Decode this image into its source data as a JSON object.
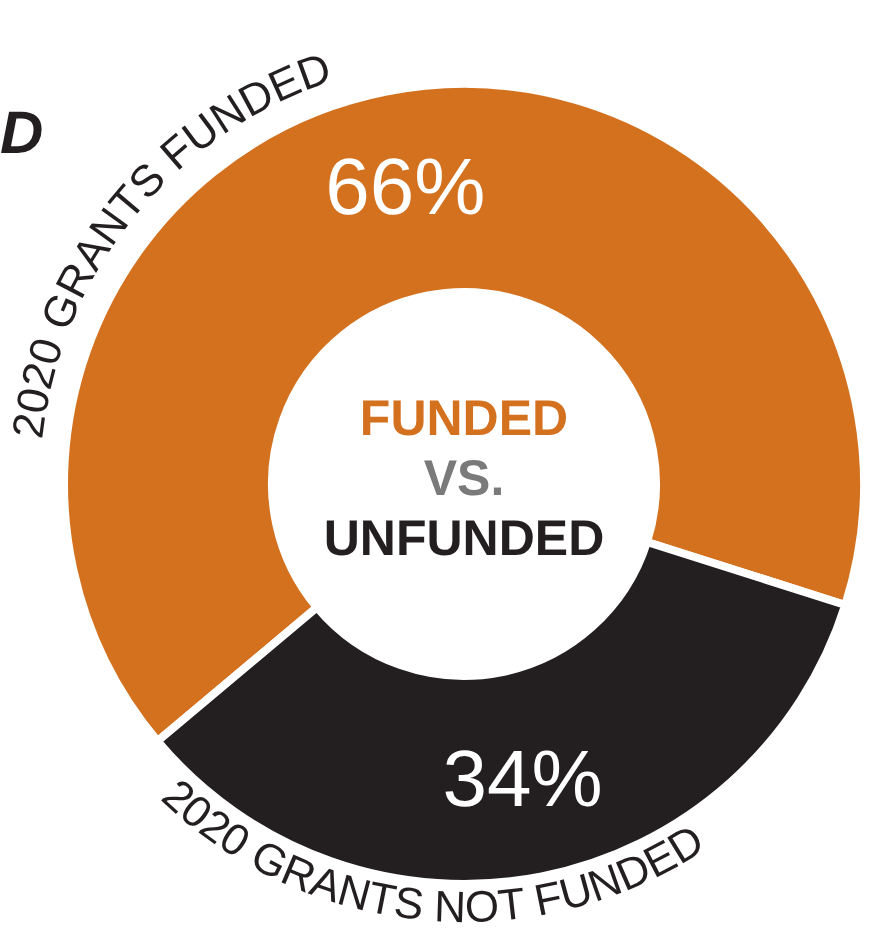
{
  "chart_data": {
    "type": "donut",
    "title": "D",
    "categories": [
      "2020 GRANTS FUNDED",
      "2020 GRANTS NOT FUNDED"
    ],
    "values": [
      66,
      34
    ],
    "value_labels": [
      "66%",
      "34%"
    ],
    "colors": [
      "#d4711f",
      "#231f20"
    ],
    "annotations": [
      "FUNDED",
      "VS.",
      "UNFUNDED"
    ],
    "legend": false
  }
}
